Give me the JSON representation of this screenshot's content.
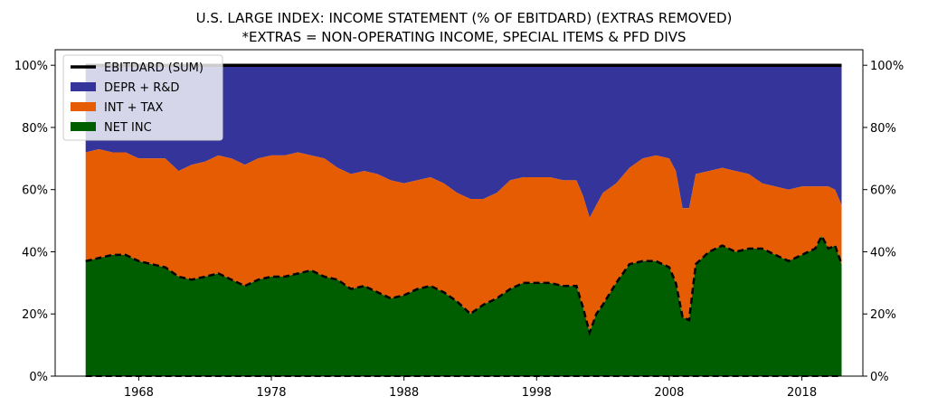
{
  "chart_data": {
    "type": "area",
    "title": "U.S. LARGE INDEX: INCOME STATEMENT (% OF EBITDARD) (EXTRAS REMOVED)",
    "subtitle": "*EXTRAS = NON-OPERATING INCOME, SPECIAL ITEMS & PFD DIVS",
    "x_ticks": [
      "1968",
      "1978",
      "1988",
      "1998",
      "2008",
      "2018"
    ],
    "y_ticks_left": [
      "0%",
      "20%",
      "40%",
      "60%",
      "80%",
      "100%"
    ],
    "y_ticks_right": [
      "0%",
      "20%",
      "40%",
      "60%",
      "80%",
      "100%"
    ],
    "xlim": [
      1961.7,
      2022.6
    ],
    "ylim": [
      0,
      1.05
    ],
    "grid": false,
    "legend_position": "top-left",
    "colors": {
      "ebitdard": "#000000",
      "depr_rd": "#35349a",
      "int_tax": "#e55c03",
      "net_inc": "#005e00"
    },
    "legend": [
      {
        "label": "EBITDARD (SUM)",
        "color": "#000000",
        "kind": "line"
      },
      {
        "label": "DEPR + R&D",
        "color": "#35349a",
        "kind": "patch"
      },
      {
        "label": "INT + TAX",
        "color": "#e55c03",
        "kind": "patch"
      },
      {
        "label": "NET INC",
        "color": "#005e00",
        "kind": "patch"
      }
    ],
    "x": [
      1964.0,
      1965.0,
      1966.0,
      1967.0,
      1968.0,
      1969.0,
      1970.0,
      1971.0,
      1972.0,
      1973.0,
      1974.0,
      1975.0,
      1976.0,
      1977.0,
      1978.0,
      1979.0,
      1980.0,
      1981.0,
      1982.0,
      1983.0,
      1984.0,
      1985.0,
      1986.0,
      1987.0,
      1988.0,
      1989.0,
      1990.0,
      1991.0,
      1992.0,
      1993.0,
      1994.0,
      1995.0,
      1996.0,
      1997.0,
      1998.0,
      1999.0,
      2000.0,
      2001.0,
      2001.5,
      2002.0,
      2002.5,
      2003.0,
      2004.0,
      2005.0,
      2006.0,
      2007.0,
      2008.0,
      2008.5,
      2009.0,
      2009.5,
      2010.0,
      2011.0,
      2012.0,
      2013.0,
      2014.0,
      2015.0,
      2016.0,
      2017.0,
      2018.0,
      2019.0,
      2019.5,
      2020.0,
      2020.5,
      2021.0
    ],
    "series": [
      {
        "name": "EBITDARD (SUM)",
        "values": [
          1.0,
          1.0,
          1.0,
          1.0,
          1.0,
          1.0,
          1.0,
          1.0,
          1.0,
          1.0,
          1.0,
          1.0,
          1.0,
          1.0,
          1.0,
          1.0,
          1.0,
          1.0,
          1.0,
          1.0,
          1.0,
          1.0,
          1.0,
          1.0,
          1.0,
          1.0,
          1.0,
          1.0,
          1.0,
          1.0,
          1.0,
          1.0,
          1.0,
          1.0,
          1.0,
          1.0,
          1.0,
          1.0,
          1.0,
          1.0,
          1.0,
          1.0,
          1.0,
          1.0,
          1.0,
          1.0,
          1.0,
          1.0,
          1.0,
          1.0,
          1.0,
          1.0,
          1.0,
          1.0,
          1.0,
          1.0,
          1.0,
          1.0,
          1.0,
          1.0,
          1.0,
          1.0,
          1.0,
          1.0
        ]
      },
      {
        "name": "NET INC",
        "values": [
          0.37,
          0.38,
          0.39,
          0.39,
          0.37,
          0.36,
          0.35,
          0.32,
          0.31,
          0.32,
          0.33,
          0.31,
          0.29,
          0.31,
          0.32,
          0.32,
          0.33,
          0.34,
          0.32,
          0.31,
          0.28,
          0.29,
          0.27,
          0.25,
          0.26,
          0.28,
          0.29,
          0.27,
          0.24,
          0.2,
          0.23,
          0.25,
          0.28,
          0.3,
          0.3,
          0.3,
          0.29,
          0.29,
          0.22,
          0.14,
          0.2,
          0.23,
          0.3,
          0.36,
          0.37,
          0.37,
          0.35,
          0.3,
          0.19,
          0.18,
          0.36,
          0.4,
          0.42,
          0.4,
          0.41,
          0.41,
          0.39,
          0.37,
          0.39,
          0.41,
          0.45,
          0.41,
          0.42,
          0.36
        ]
      },
      {
        "name": "INT + TAX",
        "values": [
          0.35,
          0.35,
          0.33,
          0.33,
          0.33,
          0.34,
          0.35,
          0.34,
          0.37,
          0.37,
          0.38,
          0.39,
          0.39,
          0.39,
          0.39,
          0.39,
          0.39,
          0.37,
          0.38,
          0.36,
          0.37,
          0.37,
          0.38,
          0.38,
          0.36,
          0.35,
          0.35,
          0.35,
          0.35,
          0.37,
          0.34,
          0.34,
          0.35,
          0.34,
          0.34,
          0.34,
          0.34,
          0.34,
          0.36,
          0.37,
          0.35,
          0.36,
          0.32,
          0.31,
          0.33,
          0.34,
          0.35,
          0.36,
          0.35,
          0.36,
          0.29,
          0.26,
          0.25,
          0.26,
          0.24,
          0.21,
          0.22,
          0.23,
          0.22,
          0.2,
          0.16,
          0.2,
          0.18,
          0.19
        ]
      },
      {
        "name": "DEPR + R&D",
        "values": [
          0.28,
          0.27,
          0.28,
          0.28,
          0.3,
          0.3,
          0.3,
          0.34,
          0.32,
          0.31,
          0.29,
          0.3,
          0.32,
          0.3,
          0.29,
          0.29,
          0.28,
          0.29,
          0.3,
          0.33,
          0.35,
          0.34,
          0.35,
          0.37,
          0.38,
          0.37,
          0.36,
          0.38,
          0.41,
          0.43,
          0.43,
          0.41,
          0.37,
          0.36,
          0.36,
          0.36,
          0.37,
          0.37,
          0.42,
          0.49,
          0.45,
          0.41,
          0.38,
          0.33,
          0.3,
          0.29,
          0.3,
          0.34,
          0.46,
          0.46,
          0.35,
          0.34,
          0.33,
          0.34,
          0.35,
          0.38,
          0.39,
          0.4,
          0.39,
          0.39,
          0.39,
          0.39,
          0.4,
          0.45
        ]
      }
    ]
  }
}
